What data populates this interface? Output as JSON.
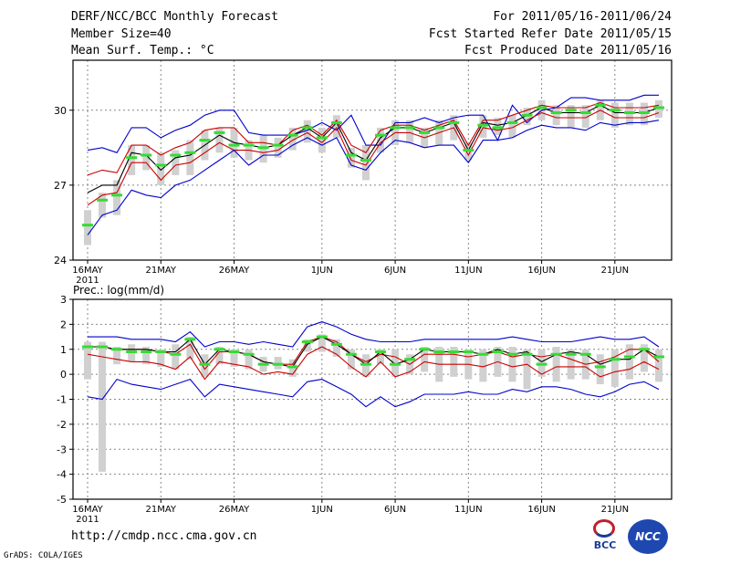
{
  "header": {
    "title": "DERF/NCC/BCC Monthly Forecast",
    "member_size": "Member Size=40",
    "variable": "Mean Surf. Temp.: °C",
    "period": "For 2011/05/16-2011/06/24",
    "started": "Fcst Started Refer Date 2011/05/15",
    "produced": "Fcst Produced Date 2011/05/16"
  },
  "footer": {
    "url": "http://cmdp.ncc.cma.gov.cn",
    "grads": "GrADS: COLA/IGES",
    "logo_bcc": "BCC",
    "logo_ncc": "NCC"
  },
  "colors": {
    "envelope": "#0000cc",
    "spread": "#cc0000",
    "mean": "#000000",
    "member_box": "#d0d0d0",
    "median": "#33dd33"
  },
  "chart_data": [
    {
      "type": "line",
      "title": "Mean Surf. Temp.: °C",
      "ylabel": "°C",
      "ylim": [
        24,
        32
      ],
      "yticks": [
        "24",
        "27",
        "30"
      ],
      "x_tick_labels": [
        "16MAY",
        "21MAY",
        "26MAY",
        "1JUN",
        "6JUN",
        "11JUN",
        "16JUN",
        "21JUN"
      ],
      "x_year_label": "2011",
      "grid": true,
      "days": 40,
      "series": [
        {
          "name": "ensemble max",
          "color": "#0000cc",
          "values": [
            28.4,
            28.5,
            28.3,
            29.3,
            29.3,
            28.9,
            29.2,
            29.4,
            29.8,
            30.0,
            30.0,
            29.1,
            29.0,
            29.0,
            29.0,
            29.2,
            29.5,
            29.2,
            29.8,
            28.6,
            28.6,
            29.5,
            29.5,
            29.7,
            29.5,
            29.7,
            29.8,
            29.8,
            28.8,
            30.2,
            29.5,
            30.0,
            30.1,
            30.5,
            30.5,
            30.4,
            30.4,
            30.4,
            30.6,
            30.6
          ]
        },
        {
          "name": "mean + sd",
          "color": "#cc0000",
          "values": [
            27.4,
            27.6,
            27.5,
            28.6,
            28.6,
            28.2,
            28.5,
            28.7,
            29.2,
            29.3,
            29.3,
            28.7,
            28.7,
            28.6,
            29.2,
            29.4,
            29.0,
            29.6,
            28.6,
            28.3,
            29.2,
            29.4,
            29.4,
            29.2,
            29.4,
            29.6,
            28.6,
            29.6,
            29.6,
            29.8,
            30.0,
            30.2,
            30.1,
            30.1,
            30.1,
            30.3,
            30.1,
            30.1,
            30.1,
            30.2
          ]
        },
        {
          "name": "ensemble mean",
          "color": "#000000",
          "values": [
            26.7,
            27.0,
            27.0,
            28.3,
            28.2,
            27.6,
            28.1,
            28.2,
            28.6,
            29.0,
            28.7,
            28.6,
            28.5,
            28.6,
            29.0,
            29.3,
            28.9,
            29.5,
            28.3,
            28.0,
            28.9,
            29.3,
            29.3,
            29.1,
            29.3,
            29.5,
            28.4,
            29.5,
            29.4,
            29.5,
            29.8,
            30.1,
            29.9,
            29.9,
            29.9,
            30.2,
            29.9,
            29.9,
            29.9,
            30.1
          ]
        },
        {
          "name": "mean - sd",
          "color": "#cc0000",
          "values": [
            26.2,
            26.6,
            26.7,
            27.9,
            27.9,
            27.2,
            27.8,
            27.9,
            28.3,
            28.7,
            28.4,
            28.4,
            28.3,
            28.4,
            28.8,
            29.1,
            28.7,
            29.3,
            28.0,
            27.8,
            28.7,
            29.1,
            29.1,
            28.9,
            29.1,
            29.3,
            28.2,
            29.3,
            29.2,
            29.3,
            29.6,
            29.9,
            29.7,
            29.7,
            29.7,
            30.0,
            29.7,
            29.7,
            29.7,
            29.9
          ]
        },
        {
          "name": "ensemble min",
          "color": "#0000cc",
          "values": [
            25.0,
            25.8,
            26.0,
            26.8,
            26.6,
            26.5,
            27.0,
            27.2,
            27.6,
            28.0,
            28.4,
            27.8,
            28.2,
            28.2,
            28.6,
            28.9,
            28.6,
            28.9,
            27.8,
            27.6,
            28.3,
            28.8,
            28.7,
            28.5,
            28.6,
            28.6,
            27.9,
            28.8,
            28.8,
            28.9,
            29.2,
            29.4,
            29.3,
            29.3,
            29.2,
            29.5,
            29.4,
            29.5,
            29.5,
            29.6
          ]
        }
      ],
      "boxes": {
        "low": [
          24.6,
          25.7,
          25.8,
          27.4,
          27.6,
          27.0,
          27.4,
          27.4,
          28.0,
          28.3,
          28.1,
          28.0,
          27.9,
          28.1,
          28.4,
          28.7,
          28.3,
          28.9,
          27.7,
          27.2,
          28.3,
          28.6,
          28.7,
          28.5,
          28.6,
          28.8,
          28.0,
          28.9,
          29.0,
          28.9,
          29.4,
          29.6,
          29.4,
          29.3,
          29.3,
          29.6,
          29.3,
          29.4,
          29.4,
          29.7
        ],
        "high": [
          26.0,
          26.7,
          27.2,
          28.6,
          28.6,
          28.3,
          28.4,
          28.8,
          29.2,
          29.3,
          29.3,
          28.8,
          29.0,
          28.9,
          29.3,
          29.6,
          29.3,
          29.8,
          28.5,
          28.6,
          29.3,
          29.6,
          29.6,
          29.3,
          29.6,
          29.8,
          28.7,
          29.8,
          29.7,
          29.8,
          30.1,
          30.4,
          30.2,
          30.2,
          30.2,
          30.4,
          30.3,
          30.3,
          30.3,
          30.4
        ]
      },
      "medians": [
        25.4,
        26.4,
        26.6,
        28.1,
        28.2,
        27.8,
        28.2,
        28.3,
        28.8,
        29.1,
        28.6,
        28.6,
        28.5,
        28.6,
        29.0,
        29.3,
        28.9,
        29.5,
        28.2,
        28.0,
        29.0,
        29.3,
        29.3,
        29.1,
        29.3,
        29.5,
        28.4,
        29.4,
        29.3,
        29.5,
        29.8,
        30.1,
        29.9,
        30.0,
        29.9,
        30.2,
        30.0,
        29.9,
        29.9,
        30.1
      ]
    },
    {
      "type": "line",
      "title": "Prec.: log(mm/d)",
      "ylabel": "log(mm/d)",
      "ylim": [
        -5,
        3
      ],
      "yticks": [
        "-5",
        "-4",
        "-3",
        "-2",
        "-1",
        "0",
        "1",
        "2",
        "3"
      ],
      "x_tick_labels": [
        "16MAY",
        "21MAY",
        "26MAY",
        "1JUN",
        "6JUN",
        "11JUN",
        "16JUN",
        "21JUN"
      ],
      "x_year_label": "2011",
      "grid": true,
      "days": 40,
      "series": [
        {
          "name": "ensemble max",
          "color": "#0000cc",
          "values": [
            1.5,
            1.5,
            1.5,
            1.4,
            1.4,
            1.4,
            1.3,
            1.7,
            1.1,
            1.3,
            1.3,
            1.2,
            1.3,
            1.2,
            1.1,
            1.9,
            2.1,
            1.9,
            1.6,
            1.4,
            1.3,
            1.3,
            1.3,
            1.4,
            1.4,
            1.4,
            1.4,
            1.4,
            1.4,
            1.5,
            1.4,
            1.3,
            1.3,
            1.3,
            1.4,
            1.5,
            1.4,
            1.4,
            1.5,
            1.1
          ]
        },
        {
          "name": "mean + sd",
          "color": "#cc0000",
          "values": [
            1.1,
            1.1,
            1.0,
            1.0,
            1.0,
            0.9,
            0.8,
            1.2,
            0.2,
            0.9,
            0.9,
            0.8,
            0.5,
            0.4,
            0.4,
            1.3,
            1.5,
            1.3,
            0.8,
            0.5,
            0.8,
            0.7,
            0.4,
            0.8,
            0.8,
            0.8,
            0.7,
            0.8,
            0.9,
            0.7,
            0.8,
            0.7,
            0.8,
            0.6,
            0.4,
            0.5,
            0.7,
            1.0,
            1.0,
            0.5
          ]
        },
        {
          "name": "ensemble mean",
          "color": "#000000",
          "values": [
            1.1,
            1.1,
            1.0,
            1.0,
            1.0,
            0.9,
            0.9,
            1.4,
            0.4,
            1.0,
            0.9,
            0.8,
            0.5,
            0.4,
            0.3,
            1.2,
            1.5,
            1.2,
            0.8,
            0.4,
            0.9,
            0.4,
            0.6,
            1.0,
            0.9,
            0.9,
            0.9,
            0.8,
            1.0,
            0.8,
            0.9,
            0.5,
            0.8,
            0.9,
            0.8,
            0.4,
            0.6,
            0.6,
            1.0,
            0.7
          ]
        },
        {
          "name": "mean - sd",
          "color": "#cc0000",
          "values": [
            0.8,
            0.7,
            0.6,
            0.5,
            0.5,
            0.4,
            0.2,
            0.7,
            -0.2,
            0.5,
            0.4,
            0.3,
            0.0,
            0.1,
            0.0,
            0.8,
            1.1,
            0.8,
            0.3,
            -0.1,
            0.5,
            -0.1,
            0.1,
            0.5,
            0.4,
            0.4,
            0.4,
            0.3,
            0.5,
            0.3,
            0.4,
            0.0,
            0.3,
            0.3,
            0.3,
            -0.1,
            0.1,
            0.2,
            0.5,
            0.2
          ]
        },
        {
          "name": "ensemble min",
          "color": "#0000cc",
          "values": [
            -0.9,
            -1.0,
            -0.2,
            -0.4,
            -0.5,
            -0.6,
            -0.4,
            -0.2,
            -0.9,
            -0.4,
            -0.5,
            -0.6,
            -0.7,
            -0.8,
            -0.9,
            -0.3,
            -0.2,
            -0.5,
            -0.8,
            -1.3,
            -0.9,
            -1.3,
            -1.1,
            -0.8,
            -0.8,
            -0.8,
            -0.7,
            -0.8,
            -0.8,
            -0.6,
            -0.7,
            -0.5,
            -0.5,
            -0.6,
            -0.8,
            -0.9,
            -0.7,
            -0.4,
            -0.3,
            -0.6
          ]
        }
      ],
      "boxes": {
        "low": [
          -0.2,
          -3.9,
          0.4,
          0.5,
          0.4,
          0.3,
          0.2,
          0.6,
          -0.1,
          0.4,
          0.3,
          0.2,
          0.1,
          0.2,
          -0.1,
          0.9,
          0.9,
          0.7,
          0.2,
          -0.1,
          0.4,
          -0.1,
          0.0,
          0.1,
          -0.3,
          -0.1,
          -0.2,
          -0.3,
          -0.1,
          -0.3,
          -0.6,
          -0.1,
          -0.3,
          -0.2,
          -0.2,
          -0.4,
          -0.5,
          -0.2,
          0.1,
          -0.3
        ],
        "high": [
          1.3,
          1.3,
          1.1,
          1.2,
          1.1,
          1.0,
          1.2,
          1.5,
          0.8,
          1.1,
          1.0,
          1.0,
          0.7,
          0.7,
          0.6,
          1.4,
          1.6,
          1.4,
          1.0,
          0.8,
          1.0,
          1.0,
          0.8,
          1.1,
          1.1,
          1.1,
          1.0,
          1.0,
          1.1,
          1.1,
          1.0,
          1.0,
          1.1,
          1.0,
          1.0,
          0.8,
          1.0,
          1.2,
          1.2,
          1.0
        ]
      },
      "medians": [
        1.1,
        1.1,
        1.0,
        0.9,
        0.9,
        0.9,
        0.8,
        1.4,
        0.4,
        1.0,
        0.9,
        0.8,
        0.4,
        0.4,
        0.3,
        1.3,
        1.5,
        1.2,
        0.8,
        0.4,
        0.9,
        0.4,
        0.6,
        1.0,
        0.9,
        0.9,
        0.9,
        0.8,
        0.9,
        0.8,
        0.8,
        0.4,
        0.8,
        0.8,
        0.8,
        0.3,
        0.6,
        0.7,
        1.0,
        0.7
      ]
    }
  ]
}
